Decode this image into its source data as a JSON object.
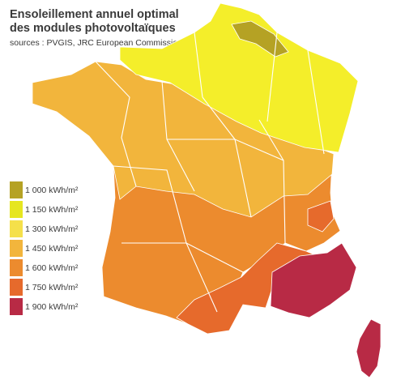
{
  "header": {
    "title_line1": "Ensoleillement annuel optimal",
    "title_line2": "des modules photovoltaïques",
    "source": "sources : PVGIS, JRC European Commission"
  },
  "legend": {
    "items": [
      {
        "label": "1 000 kWh/m²",
        "color": "#b5a224"
      },
      {
        "label": "1 150 kWh/m²",
        "color": "#e6e620"
      },
      {
        "label": "1 300 kWh/m²",
        "color": "#f5e04a"
      },
      {
        "label": "1 450 kWh/m²",
        "color": "#f2b53c"
      },
      {
        "label": "1 600 kWh/m²",
        "color": "#ec8b2e"
      },
      {
        "label": "1 750 kWh/m²",
        "color": "#e66a2c"
      },
      {
        "label": "1 900 kWh/m²",
        "color": "#b82a45"
      }
    ]
  },
  "map": {
    "zone_colors": {
      "north": "#f4ee2a",
      "nord_pas_calais_high": "#b5a224",
      "center": "#f2b53c",
      "south": "#ec8b2e",
      "south_deep": "#e66a2c",
      "provence": "#b82a45",
      "corsica": "#b82a45",
      "borders": "#ffffff"
    }
  }
}
